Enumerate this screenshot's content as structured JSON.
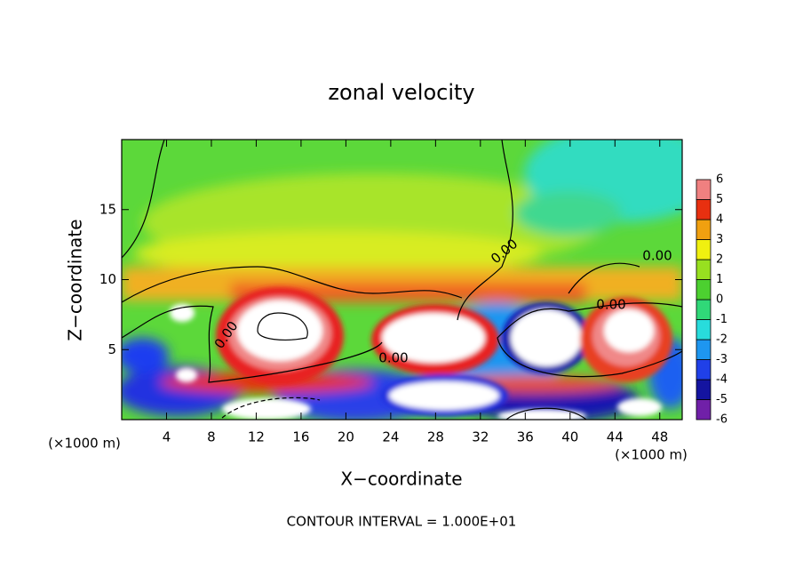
{
  "chart_data": {
    "type": "heatmap",
    "title": "zonal velocity",
    "x_label": "X−coordinate",
    "y_label": "Z−coordinate",
    "x_unit": "(×1000 m)",
    "y_unit": "(×1000 m)",
    "xlim": [
      0,
      50
    ],
    "xticks": [
      4,
      8,
      12,
      16,
      20,
      24,
      28,
      32,
      36,
      40,
      44,
      48
    ],
    "ylim": [
      0,
      20
    ],
    "yticks": [
      5,
      10,
      15
    ],
    "contour_labels": [
      "0.00",
      "0.00",
      "0.00",
      "0.00",
      "0.00"
    ],
    "footer": "CONTOUR INTERVAL = 1.000E+01",
    "colorbar": {
      "levels": [
        -6,
        -5,
        -4,
        -3,
        -2,
        -1,
        0,
        1,
        2,
        3,
        4,
        5,
        6
      ],
      "colors": [
        "#7020a8",
        "#1414a0",
        "#2040e8",
        "#1e96f0",
        "#28dcdc",
        "#30d878",
        "#4cd030",
        "#98e020",
        "#f0f010",
        "#f0a010",
        "#e83010",
        "#f08080"
      ]
    }
  }
}
